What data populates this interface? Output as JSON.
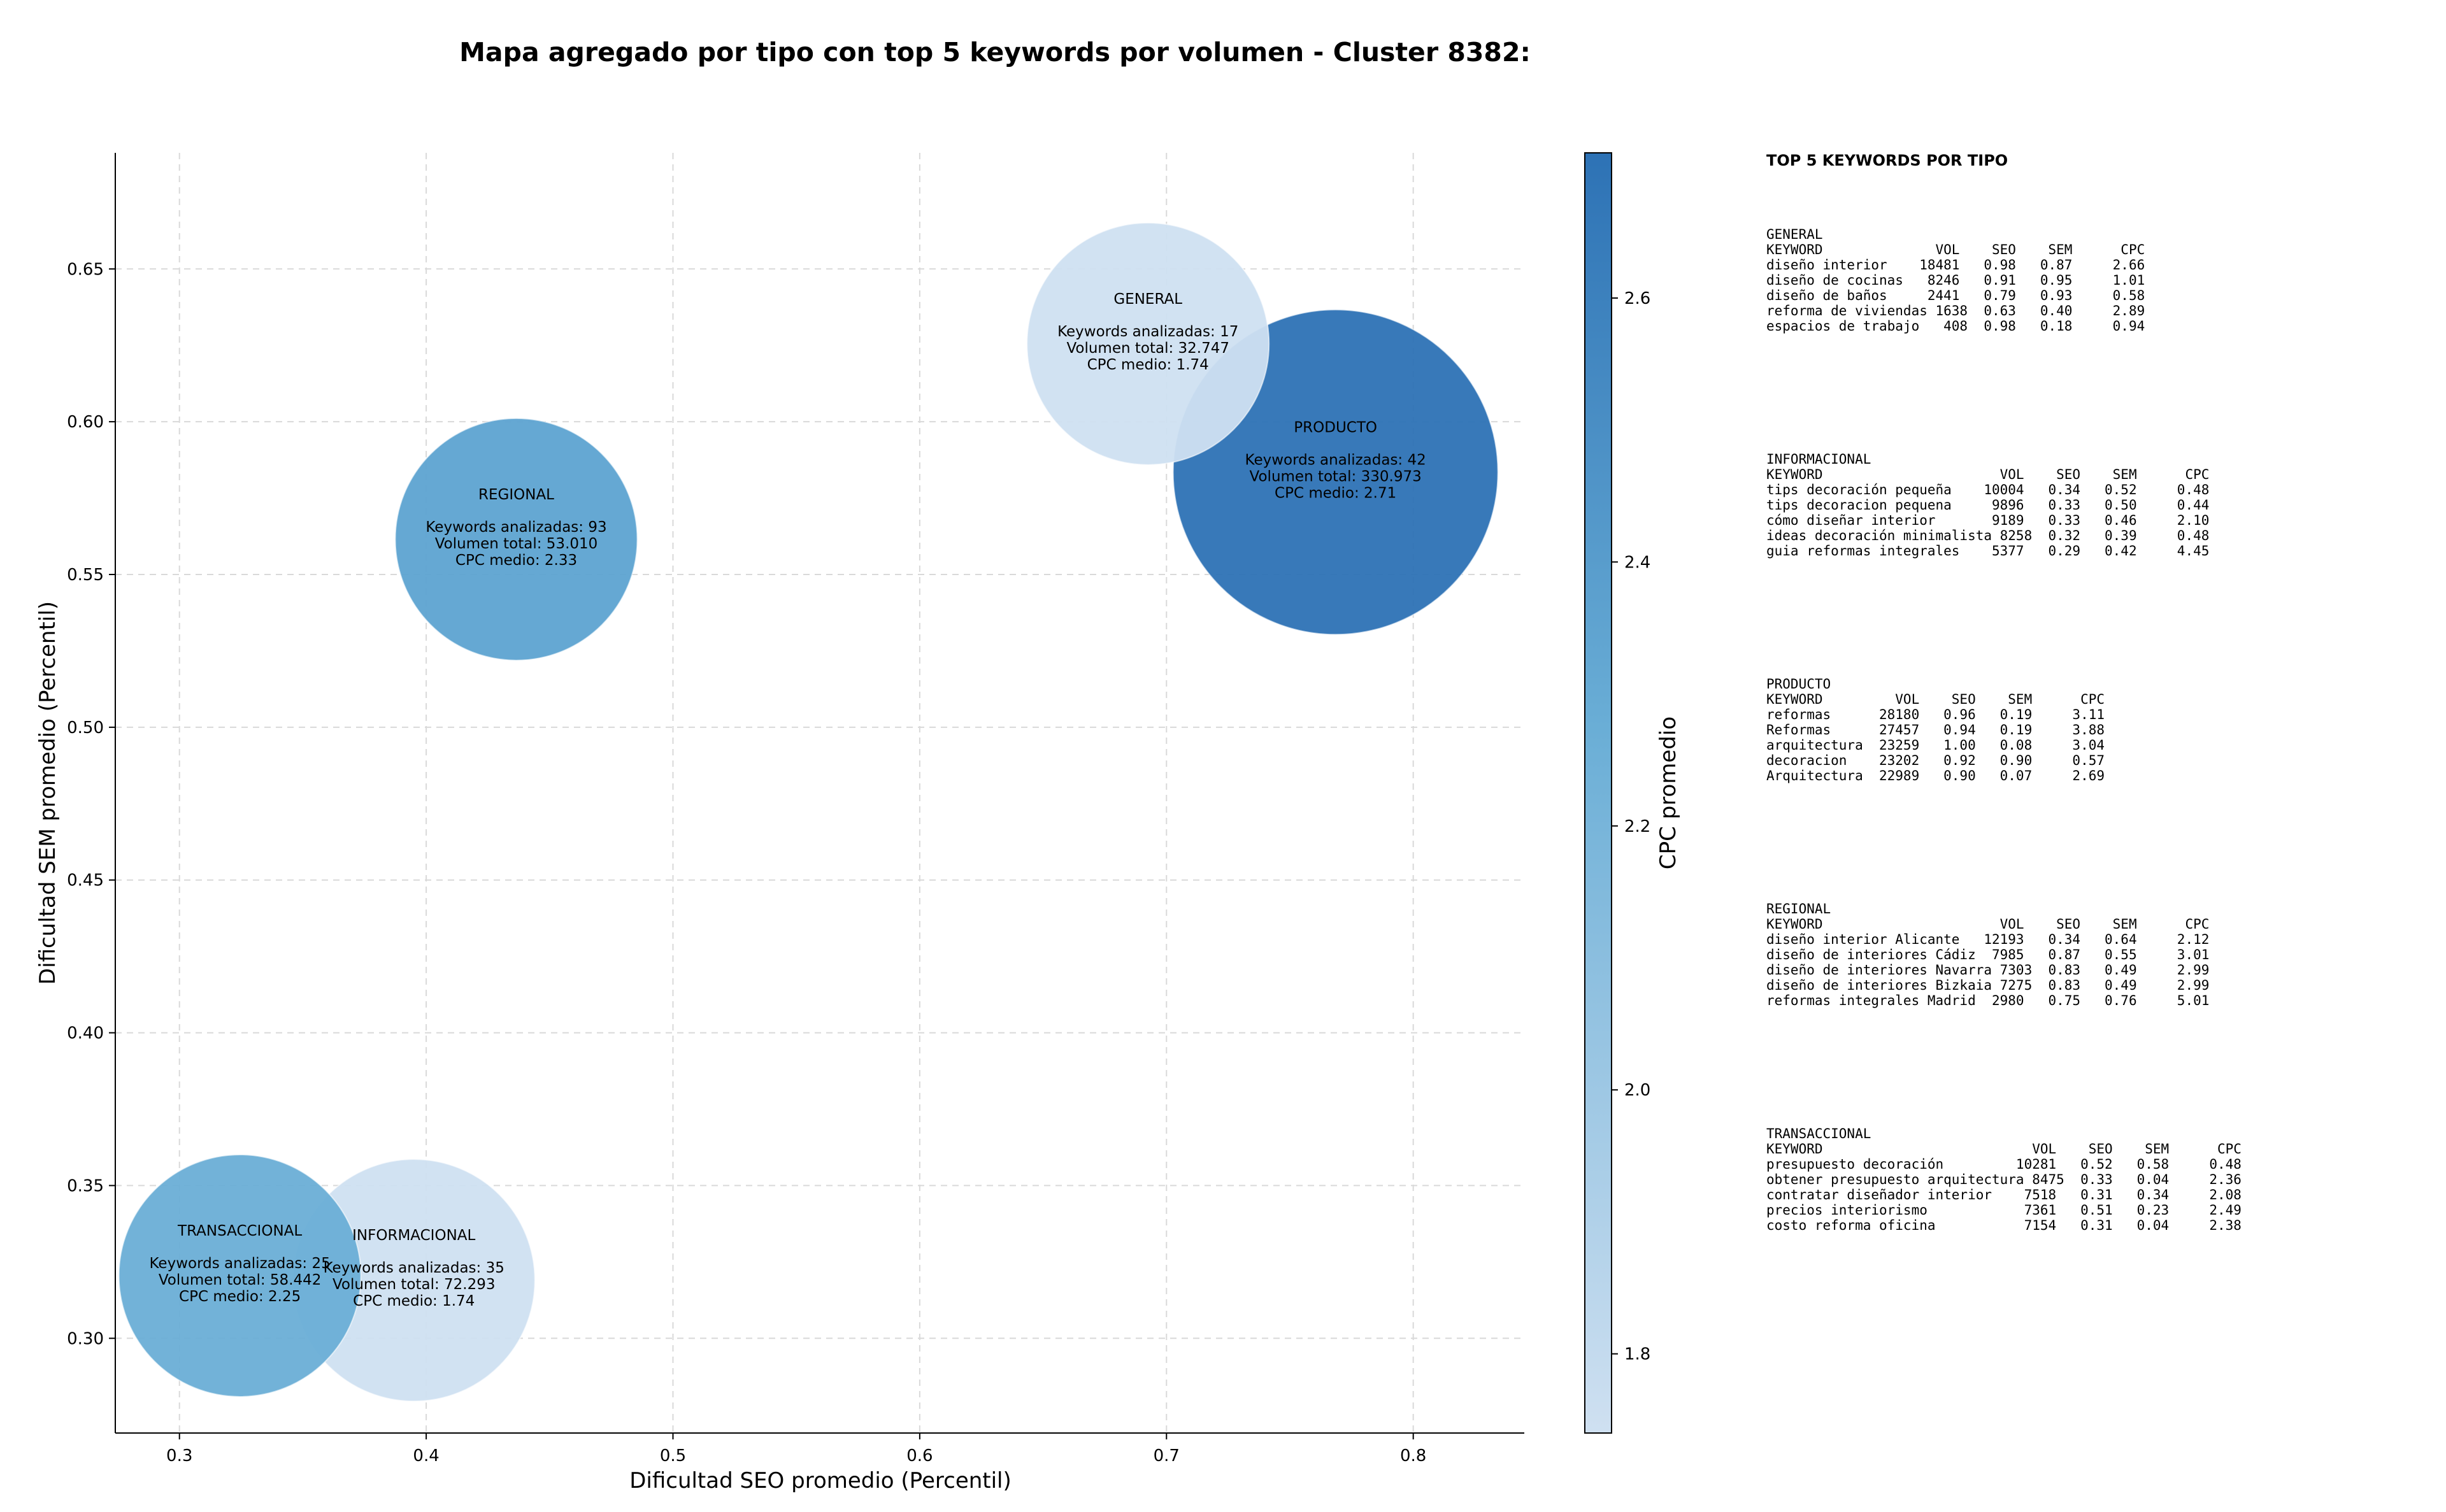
{
  "title": "Mapa agregado por tipo con top 5 keywords por volumen - Cluster 8382:",
  "chart_data": {
    "type": "scatter",
    "title": "Mapa agregado por tipo con top 5 keywords por volumen - Cluster 8382:",
    "xlabel": "Dificultad SEO promedio (Percentil)",
    "ylabel": "Dificultad SEM promedio (Percentil)",
    "xlim": [
      0.274,
      0.845
    ],
    "ylim": [
      0.269,
      0.688
    ],
    "xticks": [
      0.3,
      0.4,
      0.5,
      0.6,
      0.7,
      0.8
    ],
    "xtick_labels": [
      "0.3",
      "0.4",
      "0.5",
      "0.6",
      "0.7",
      "0.8"
    ],
    "yticks": [
      0.3,
      0.35,
      0.4,
      0.45,
      0.5,
      0.55,
      0.6,
      0.65
    ],
    "ytick_labels": [
      "0.30",
      "0.35",
      "0.40",
      "0.45",
      "0.50",
      "0.55",
      "0.60",
      "0.65"
    ],
    "grid": true,
    "colorbar": {
      "label": "CPC promedio",
      "min": 1.74,
      "max": 2.71,
      "ticks": [
        1.8,
        2.0,
        2.2,
        2.4,
        2.6
      ],
      "tick_labels": [
        "1.8",
        "2.0",
        "2.2",
        "2.4",
        "2.6"
      ],
      "color_low": "#cfe0f1",
      "color_mid": "#6aaed6",
      "color_high": "#2d72b5"
    },
    "points": [
      {
        "label": "INFORMACIONAL",
        "x": 0.395,
        "y": 0.319,
        "lines": [
          "Keywords analizadas: 35",
          "Volumen total: 72.293",
          "CPC medio: 1.74"
        ],
        "volume": 72293,
        "cpc": 1.74,
        "color": "#cfe0f1"
      },
      {
        "label": "TRANSACCIONAL",
        "x": 0.3245,
        "y": 0.3205,
        "lines": [
          "Keywords analizadas: 25",
          "Volumen total: 58.442",
          "CPC medio: 2.25"
        ],
        "volume": 58442,
        "cpc": 2.25,
        "color": "#6aaed6"
      },
      {
        "label": "REGIONAL",
        "x": 0.4365,
        "y": 0.5615,
        "lines": [
          "Keywords analizadas: 93",
          "Volumen total: 53.010",
          "CPC medio: 2.33"
        ],
        "volume": 53010,
        "cpc": 2.33,
        "color": "#5da3d1"
      },
      {
        "label": "GENERAL",
        "x": 0.6925,
        "y": 0.6255,
        "lines": [
          "Keywords analizadas: 17",
          "Volumen total: 32.747",
          "CPC medio: 1.74"
        ],
        "volume": 32747,
        "cpc": 1.74,
        "color": "#cfe0f1"
      },
      {
        "label": "PRODUCTO",
        "x": 0.7685,
        "y": 0.5835,
        "lines": [
          "Keywords analizadas: 42",
          "Volumen total: 330.973",
          "CPC medio: 2.71"
        ],
        "volume": 330973,
        "cpc": 2.71,
        "color": "#2d72b5"
      }
    ]
  },
  "side_panel": {
    "heading": "TOP 5 KEYWORDS POR TIPO",
    "blocks": [
      {
        "name": "GENERAL",
        "lines": [
          "KEYWORD              VOL    SEO    SEM      CPC",
          "diseño interior    18481   0.98   0.87     2.66",
          "diseño de cocinas   8246   0.91   0.95     1.01",
          "diseño de baños     2441   0.79   0.93     0.58",
          "reforma de viviendas 1638  0.63   0.40     2.89",
          "espacios de trabajo   408  0.98   0.18     0.94"
        ]
      },
      {
        "name": "INFORMACIONAL",
        "lines": [
          "KEYWORD                      VOL    SEO    SEM      CPC",
          "tips decoración pequeña    10004   0.34   0.52     0.48",
          "tips decoracion pequena     9896   0.33   0.50     0.44",
          "cómo diseñar interior       9189   0.33   0.46     2.10",
          "ideas decoración minimalista 8258  0.32   0.39     0.48",
          "guia reformas integrales    5377   0.29   0.42     4.45"
        ]
      },
      {
        "name": "PRODUCTO",
        "lines": [
          "KEYWORD         VOL    SEO    SEM      CPC",
          "reformas      28180   0.96   0.19     3.11",
          "Reformas      27457   0.94   0.19     3.88",
          "arquitectura  23259   1.00   0.08     3.04",
          "decoracion    23202   0.92   0.90     0.57",
          "Arquitectura  22989   0.90   0.07     2.69"
        ]
      },
      {
        "name": "REGIONAL",
        "lines": [
          "KEYWORD                      VOL    SEO    SEM      CPC",
          "diseño interior Alicante   12193   0.34   0.64     2.12",
          "diseño de interiores Cádiz  7985   0.87   0.55     3.01",
          "diseño de interiores Navarra 7303  0.83   0.49     2.99",
          "diseño de interiores Bizkaia 7275  0.83   0.49     2.99",
          "reformas integrales Madrid  2980   0.75   0.76     5.01"
        ]
      },
      {
        "name": "TRANSACCIONAL",
        "lines": [
          "KEYWORD                          VOL    SEO    SEM      CPC",
          "presupuesto decoración         10281   0.52   0.58     0.48",
          "obtener presupuesto arquitectura 8475  0.33   0.04     2.36",
          "contratar diseñador interior    7518   0.31   0.34     2.08",
          "precios interiorismo            7361   0.51   0.23     2.49",
          "costo reforma oficina           7154   0.31   0.04     2.38"
        ]
      }
    ]
  }
}
